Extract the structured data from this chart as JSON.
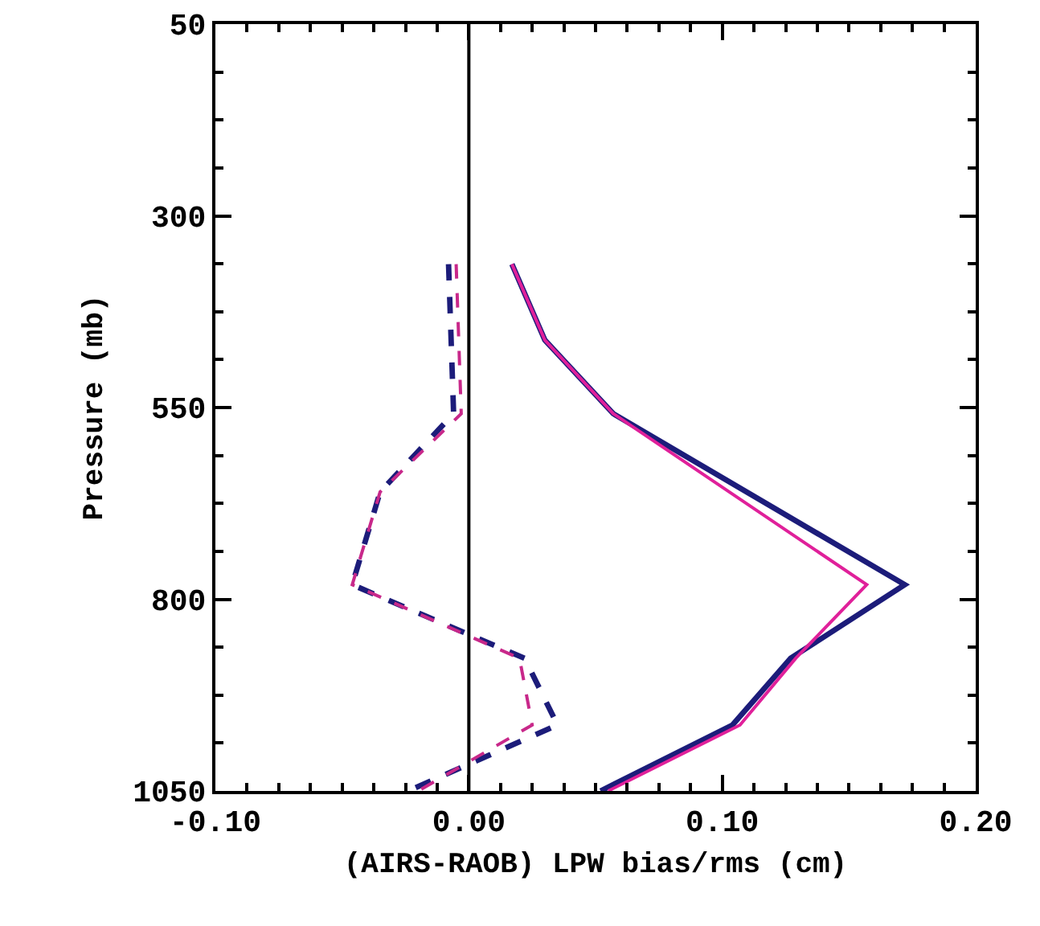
{
  "chart_data": {
    "type": "line",
    "xlabel": "(AIRS-RAOB) LPW bias/rms (cm)",
    "ylabel": "Pressure (mb)",
    "xlim": [
      -0.1,
      0.2
    ],
    "xticks": [
      {
        "value": -0.1,
        "label": "-0.10"
      },
      {
        "value": 0,
        "label": "0.00"
      },
      {
        "value": 0.1,
        "label": "0.10"
      },
      {
        "value": 0.2,
        "label": "0.20"
      }
    ],
    "ylim": [
      1050,
      50
    ],
    "yticks": [
      50,
      300,
      550,
      800,
      1050
    ],
    "grid": false,
    "marker": "none",
    "ref_lines": [
      {
        "axis": "x",
        "value": 0,
        "color": "#000000"
      }
    ],
    "series": [
      {
        "color": "#1c1c7a",
        "line_style": "dashed",
        "x": [
          -0.008,
          -0.006,
          -0.035,
          -0.046,
          0.022,
          0.035,
          -0.024
        ],
        "values": [
          363,
          558,
          660,
          781,
          877,
          964,
          1050
        ]
      },
      {
        "color": "#c8288a",
        "line_style": "dashed",
        "x": [
          -0.005,
          -0.003,
          -0.035,
          -0.046,
          0.02,
          0.025,
          -0.02
        ],
        "values": [
          363,
          558,
          660,
          781,
          877,
          964,
          1050
        ]
      },
      {
        "color": "#1c1c7a",
        "line_style": "solid",
        "x": [
          0.017,
          0.03,
          0.057,
          0.172,
          0.127,
          0.104,
          0.052
        ],
        "values": [
          363,
          462,
          558,
          781,
          877,
          964,
          1050
        ]
      },
      {
        "color": "#e0209a",
        "line_style": "solid",
        "x": [
          0.017,
          0.03,
          0.057,
          0.157,
          0.129,
          0.107,
          0.055
        ],
        "values": [
          363,
          462,
          558,
          781,
          877,
          964,
          1050
        ]
      }
    ]
  }
}
